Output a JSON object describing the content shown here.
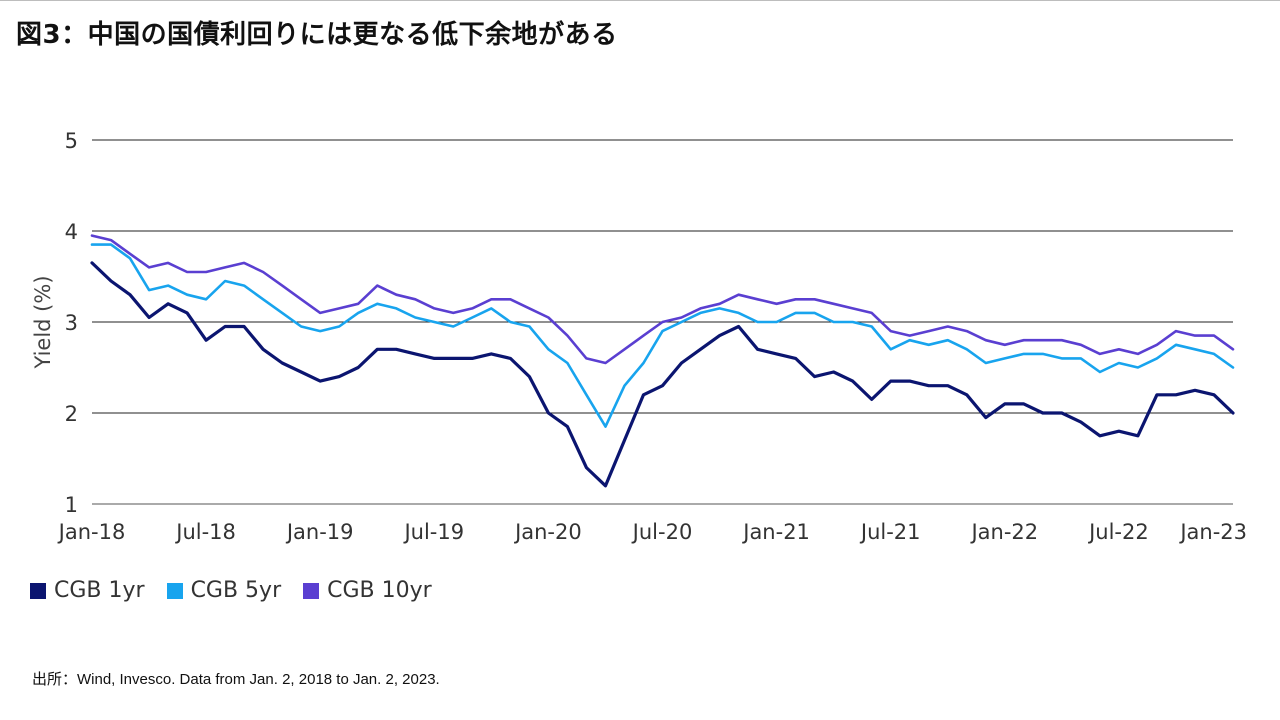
{
  "title": "図3：中国の国債利回りには更なる低下余地がある",
  "source": "出所：Wind, Invesco. Data from Jan. 2, 2018 to Jan. 2, 2023.",
  "chart_data": {
    "type": "line",
    "ylabel": "Yield (%)",
    "ylim": [
      1,
      5
    ],
    "yticks": [
      1,
      2,
      3,
      4,
      5
    ],
    "xlim": [
      "2018-01",
      "2023-01"
    ],
    "xticks": [
      {
        "x": "2018-01",
        "label": "Jan-18"
      },
      {
        "x": "2018-07",
        "label": "Jul-18"
      },
      {
        "x": "2019-01",
        "label": "Jan-19"
      },
      {
        "x": "2019-07",
        "label": "Jul-19"
      },
      {
        "x": "2020-01",
        "label": "Jan-20"
      },
      {
        "x": "2020-07",
        "label": "Jul-20"
      },
      {
        "x": "2021-01",
        "label": "Jan-21"
      },
      {
        "x": "2021-07",
        "label": "Jul-21"
      },
      {
        "x": "2022-01",
        "label": "Jan-22"
      },
      {
        "x": "2022-07",
        "label": "Jul-22"
      },
      {
        "x": "2023-01",
        "label": "Jan-23"
      }
    ],
    "grid": "horizontal",
    "legend": "bottom-left",
    "series": [
      {
        "name": "CGB 1yr",
        "color": "#0b1570",
        "points": [
          [
            "2018-01",
            3.65
          ],
          [
            "2018-02",
            3.45
          ],
          [
            "2018-03",
            3.3
          ],
          [
            "2018-04",
            3.05
          ],
          [
            "2018-05",
            3.2
          ],
          [
            "2018-06",
            3.1
          ],
          [
            "2018-07",
            2.8
          ],
          [
            "2018-08",
            2.95
          ],
          [
            "2018-09",
            2.95
          ],
          [
            "2018-10",
            2.7
          ],
          [
            "2018-11",
            2.55
          ],
          [
            "2018-12",
            2.45
          ],
          [
            "2019-01",
            2.35
          ],
          [
            "2019-02",
            2.4
          ],
          [
            "2019-03",
            2.5
          ],
          [
            "2019-04",
            2.7
          ],
          [
            "2019-05",
            2.7
          ],
          [
            "2019-06",
            2.65
          ],
          [
            "2019-07",
            2.6
          ],
          [
            "2019-08",
            2.6
          ],
          [
            "2019-09",
            2.6
          ],
          [
            "2019-10",
            2.65
          ],
          [
            "2019-11",
            2.6
          ],
          [
            "2019-12",
            2.4
          ],
          [
            "2020-01",
            2.0
          ],
          [
            "2020-02",
            1.85
          ],
          [
            "2020-03",
            1.4
          ],
          [
            "2020-04",
            1.2
          ],
          [
            "2020-05",
            1.7
          ],
          [
            "2020-06",
            2.2
          ],
          [
            "2020-07",
            2.3
          ],
          [
            "2020-08",
            2.55
          ],
          [
            "2020-09",
            2.7
          ],
          [
            "2020-10",
            2.85
          ],
          [
            "2020-11",
            2.95
          ],
          [
            "2020-12",
            2.7
          ],
          [
            "2021-01",
            2.65
          ],
          [
            "2021-02",
            2.6
          ],
          [
            "2021-03",
            2.4
          ],
          [
            "2021-04",
            2.45
          ],
          [
            "2021-05",
            2.35
          ],
          [
            "2021-06",
            2.15
          ],
          [
            "2021-07",
            2.35
          ],
          [
            "2021-08",
            2.35
          ],
          [
            "2021-09",
            2.3
          ],
          [
            "2021-10",
            2.3
          ],
          [
            "2021-11",
            2.2
          ],
          [
            "2021-12",
            1.95
          ],
          [
            "2022-01",
            2.1
          ],
          [
            "2022-02",
            2.1
          ],
          [
            "2022-03",
            2.0
          ],
          [
            "2022-04",
            2.0
          ],
          [
            "2022-05",
            1.9
          ],
          [
            "2022-06",
            1.75
          ],
          [
            "2022-07",
            1.8
          ],
          [
            "2022-08",
            1.75
          ],
          [
            "2022-09",
            2.2
          ],
          [
            "2022-10",
            2.2
          ],
          [
            "2022-11",
            2.25
          ],
          [
            "2022-12",
            2.2
          ],
          [
            "2023-01",
            2.0
          ]
        ]
      },
      {
        "name": "CGB 5yr",
        "color": "#18a4ee",
        "points": [
          [
            "2018-01",
            3.85
          ],
          [
            "2018-02",
            3.85
          ],
          [
            "2018-03",
            3.7
          ],
          [
            "2018-04",
            3.35
          ],
          [
            "2018-05",
            3.4
          ],
          [
            "2018-06",
            3.3
          ],
          [
            "2018-07",
            3.25
          ],
          [
            "2018-08",
            3.45
          ],
          [
            "2018-09",
            3.4
          ],
          [
            "2018-10",
            3.25
          ],
          [
            "2018-11",
            3.1
          ],
          [
            "2018-12",
            2.95
          ],
          [
            "2019-01",
            2.9
          ],
          [
            "2019-02",
            2.95
          ],
          [
            "2019-03",
            3.1
          ],
          [
            "2019-04",
            3.2
          ],
          [
            "2019-05",
            3.15
          ],
          [
            "2019-06",
            3.05
          ],
          [
            "2019-07",
            3.0
          ],
          [
            "2019-08",
            2.95
          ],
          [
            "2019-09",
            3.05
          ],
          [
            "2019-10",
            3.15
          ],
          [
            "2019-11",
            3.0
          ],
          [
            "2019-12",
            2.95
          ],
          [
            "2020-01",
            2.7
          ],
          [
            "2020-02",
            2.55
          ],
          [
            "2020-03",
            2.2
          ],
          [
            "2020-04",
            1.85
          ],
          [
            "2020-05",
            2.3
          ],
          [
            "2020-06",
            2.55
          ],
          [
            "2020-07",
            2.9
          ],
          [
            "2020-08",
            3.0
          ],
          [
            "2020-09",
            3.1
          ],
          [
            "2020-10",
            3.15
          ],
          [
            "2020-11",
            3.1
          ],
          [
            "2020-12",
            3.0
          ],
          [
            "2021-01",
            3.0
          ],
          [
            "2021-02",
            3.1
          ],
          [
            "2021-03",
            3.1
          ],
          [
            "2021-04",
            3.0
          ],
          [
            "2021-05",
            3.0
          ],
          [
            "2021-06",
            2.95
          ],
          [
            "2021-07",
            2.7
          ],
          [
            "2021-08",
            2.8
          ],
          [
            "2021-09",
            2.75
          ],
          [
            "2021-10",
            2.8
          ],
          [
            "2021-11",
            2.7
          ],
          [
            "2021-12",
            2.55
          ],
          [
            "2022-01",
            2.6
          ],
          [
            "2022-02",
            2.65
          ],
          [
            "2022-03",
            2.65
          ],
          [
            "2022-04",
            2.6
          ],
          [
            "2022-05",
            2.6
          ],
          [
            "2022-06",
            2.45
          ],
          [
            "2022-07",
            2.55
          ],
          [
            "2022-08",
            2.5
          ],
          [
            "2022-09",
            2.6
          ],
          [
            "2022-10",
            2.75
          ],
          [
            "2022-11",
            2.7
          ],
          [
            "2022-12",
            2.65
          ],
          [
            "2023-01",
            2.5
          ]
        ]
      },
      {
        "name": "CGB 10yr",
        "color": "#5a3fd1",
        "points": [
          [
            "2018-01",
            3.95
          ],
          [
            "2018-02",
            3.9
          ],
          [
            "2018-03",
            3.75
          ],
          [
            "2018-04",
            3.6
          ],
          [
            "2018-05",
            3.65
          ],
          [
            "2018-06",
            3.55
          ],
          [
            "2018-07",
            3.55
          ],
          [
            "2018-08",
            3.6
          ],
          [
            "2018-09",
            3.65
          ],
          [
            "2018-10",
            3.55
          ],
          [
            "2018-11",
            3.4
          ],
          [
            "2018-12",
            3.25
          ],
          [
            "2019-01",
            3.1
          ],
          [
            "2019-02",
            3.15
          ],
          [
            "2019-03",
            3.2
          ],
          [
            "2019-04",
            3.4
          ],
          [
            "2019-05",
            3.3
          ],
          [
            "2019-06",
            3.25
          ],
          [
            "2019-07",
            3.15
          ],
          [
            "2019-08",
            3.1
          ],
          [
            "2019-09",
            3.15
          ],
          [
            "2019-10",
            3.25
          ],
          [
            "2019-11",
            3.25
          ],
          [
            "2019-12",
            3.15
          ],
          [
            "2020-01",
            3.05
          ],
          [
            "2020-02",
            2.85
          ],
          [
            "2020-03",
            2.6
          ],
          [
            "2020-04",
            2.55
          ],
          [
            "2020-05",
            2.7
          ],
          [
            "2020-06",
            2.85
          ],
          [
            "2020-07",
            3.0
          ],
          [
            "2020-08",
            3.05
          ],
          [
            "2020-09",
            3.15
          ],
          [
            "2020-10",
            3.2
          ],
          [
            "2020-11",
            3.3
          ],
          [
            "2020-12",
            3.25
          ],
          [
            "2021-01",
            3.2
          ],
          [
            "2021-02",
            3.25
          ],
          [
            "2021-03",
            3.25
          ],
          [
            "2021-04",
            3.2
          ],
          [
            "2021-05",
            3.15
          ],
          [
            "2021-06",
            3.1
          ],
          [
            "2021-07",
            2.9
          ],
          [
            "2021-08",
            2.85
          ],
          [
            "2021-09",
            2.9
          ],
          [
            "2021-10",
            2.95
          ],
          [
            "2021-11",
            2.9
          ],
          [
            "2021-12",
            2.8
          ],
          [
            "2022-01",
            2.75
          ],
          [
            "2022-02",
            2.8
          ],
          [
            "2022-03",
            2.8
          ],
          [
            "2022-04",
            2.8
          ],
          [
            "2022-05",
            2.75
          ],
          [
            "2022-06",
            2.65
          ],
          [
            "2022-07",
            2.7
          ],
          [
            "2022-08",
            2.65
          ],
          [
            "2022-09",
            2.75
          ],
          [
            "2022-10",
            2.9
          ],
          [
            "2022-11",
            2.85
          ],
          [
            "2022-12",
            2.85
          ],
          [
            "2023-01",
            2.7
          ]
        ]
      }
    ]
  }
}
